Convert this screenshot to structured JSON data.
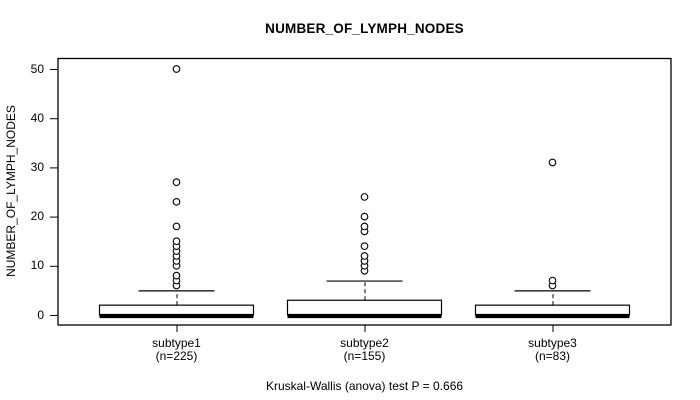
{
  "chart_data": {
    "type": "boxplot",
    "title": "NUMBER_OF_LYMPH_NODES",
    "ylabel": "NUMBER_OF_LYMPH_NODES",
    "caption": "Kruskal-Wallis (anova) test P = 0.666",
    "ylim": [
      0,
      50
    ],
    "yticks": [
      0,
      10,
      20,
      30,
      40,
      50
    ],
    "grid": false,
    "legend": "none",
    "colors": {
      "stroke": "#000000",
      "box_fill": "#ffffff",
      "background": "#ffffff"
    },
    "groups": [
      {
        "label": "subtype1",
        "sublabel": "(n=225)",
        "n": 225,
        "whisker_low": 0,
        "q1": 0,
        "median": 0,
        "q3": 2,
        "whisker_high": 5,
        "outliers": [
          6,
          7,
          8,
          10,
          11,
          12,
          13,
          14,
          15,
          18,
          23,
          27,
          50
        ]
      },
      {
        "label": "subtype2",
        "sublabel": "(n=155)",
        "n": 155,
        "whisker_low": 0,
        "q1": 0,
        "median": 0,
        "q3": 3,
        "whisker_high": 7,
        "outliers": [
          9,
          10,
          11,
          12,
          14,
          17,
          18,
          20,
          24
        ]
      },
      {
        "label": "subtype3",
        "sublabel": "(n=83)",
        "n": 83,
        "whisker_low": 0,
        "q1": 0,
        "median": 0,
        "q3": 2,
        "whisker_high": 5,
        "outliers": [
          6,
          7,
          31
        ]
      }
    ]
  }
}
